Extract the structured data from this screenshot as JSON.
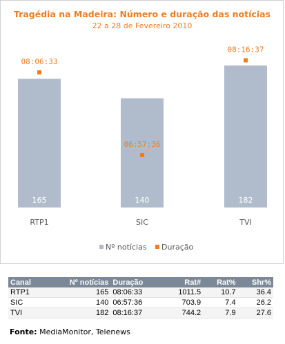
{
  "chart_data": {
    "type": "bar",
    "title": "Tragédia na Madeira: Número e duração das notícias",
    "subtitle": "22 a 28 de Fevereiro 2010",
    "categories": [
      "RTP1",
      "SIC",
      "TVI"
    ],
    "series": [
      {
        "name": "Nº notícias",
        "type": "bar",
        "values": [
          165,
          140,
          182
        ],
        "color": "#b0bccb"
      },
      {
        "name": "Duração",
        "type": "point",
        "values": [
          "08:06:33",
          "06:57:36",
          "08:16:37"
        ],
        "values_seconds": [
          29193,
          25056,
          29797
        ],
        "color": "#ee7d22"
      }
    ],
    "legend_position": "bottom",
    "grid": false
  },
  "colors": {
    "title": "#ee7d22",
    "bar": "#b0bccb",
    "marker": "#ee7d22",
    "axis_text": "#555555",
    "table_header": "#7a8898"
  },
  "table": {
    "headers": [
      "Canal",
      "Nº notícias",
      "Duração",
      "Rat#",
      "Rat%",
      "Shr%"
    ],
    "rows": [
      [
        "RTP1",
        "165",
        "08:06:33",
        "1011.5",
        "10.7",
        "36.4"
      ],
      [
        "SIC",
        "140",
        "06:57:36",
        "703.9",
        "7.4",
        "26.2"
      ],
      [
        "TVI",
        "182",
        "08:16:37",
        "744.2",
        "7.9",
        "27.6"
      ]
    ]
  },
  "source": {
    "label": "Fonte:",
    "text": " MediaMonitor, Telenews"
  }
}
